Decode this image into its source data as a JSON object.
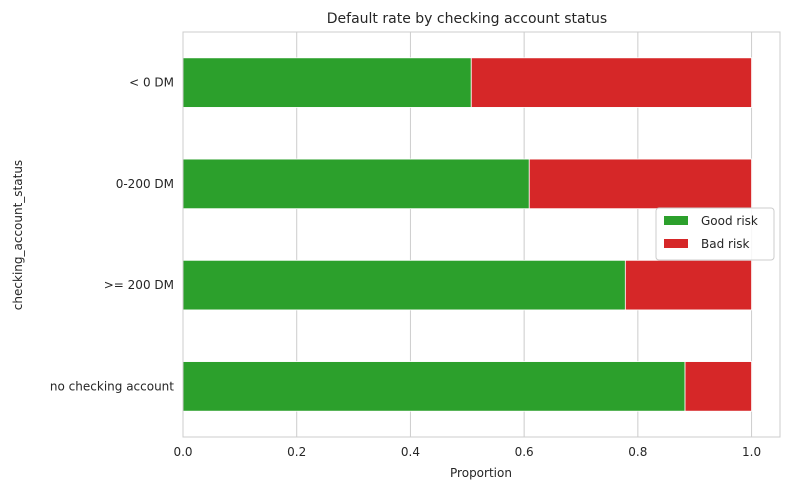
{
  "chart_data": {
    "type": "bar",
    "orientation": "horizontal",
    "stacked": true,
    "title": "Default rate by checking account status",
    "xlabel": "Proportion",
    "ylabel": "checking_account_status",
    "xlim": [
      0,
      1.05
    ],
    "xticks": [
      "0.0",
      "0.2",
      "0.4",
      "0.6",
      "0.8",
      "1.0"
    ],
    "grid": true,
    "legend_position": "center-right",
    "categories": [
      "< 0 DM",
      "0-200 DM",
      ">= 200 DM",
      "no checking account"
    ],
    "series": [
      {
        "name": "Good risk",
        "color": "#2ca02c",
        "values": [
          0.507,
          0.609,
          0.778,
          0.883
        ]
      },
      {
        "name": "Bad risk",
        "color": "#d62728",
        "values": [
          0.493,
          0.391,
          0.222,
          0.117
        ]
      }
    ]
  }
}
